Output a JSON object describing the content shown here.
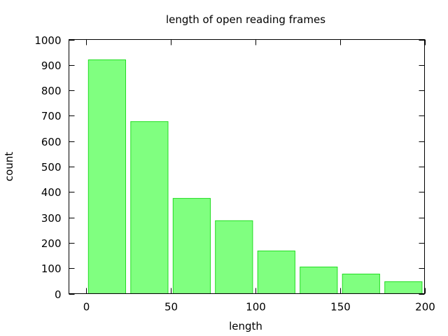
{
  "chart_data": {
    "type": "bar",
    "title": "length of open reading frames",
    "xlabel": "length",
    "ylabel": "count",
    "xlim": [
      -10,
      200
    ],
    "ylim": [
      0,
      1000
    ],
    "x_ticks": [
      0,
      50,
      100,
      150,
      200
    ],
    "y_ticks": [
      0,
      100,
      200,
      300,
      400,
      500,
      600,
      700,
      800,
      900,
      1000
    ],
    "bins": [
      {
        "x0": 1.5,
        "x1": 23.5,
        "value": 920
      },
      {
        "x0": 26.5,
        "x1": 48.5,
        "value": 677
      },
      {
        "x0": 51.5,
        "x1": 73.5,
        "value": 375
      },
      {
        "x0": 76.5,
        "x1": 98.5,
        "value": 287
      },
      {
        "x0": 101.5,
        "x1": 123.5,
        "value": 168
      },
      {
        "x0": 126.5,
        "x1": 148.5,
        "value": 105
      },
      {
        "x0": 151.5,
        "x1": 173.5,
        "value": 77
      },
      {
        "x0": 176.5,
        "x1": 198.5,
        "value": 47
      }
    ],
    "bar_fill": "#80ff80",
    "bar_stroke": "#22dd22",
    "grid": false,
    "legend": "none"
  }
}
